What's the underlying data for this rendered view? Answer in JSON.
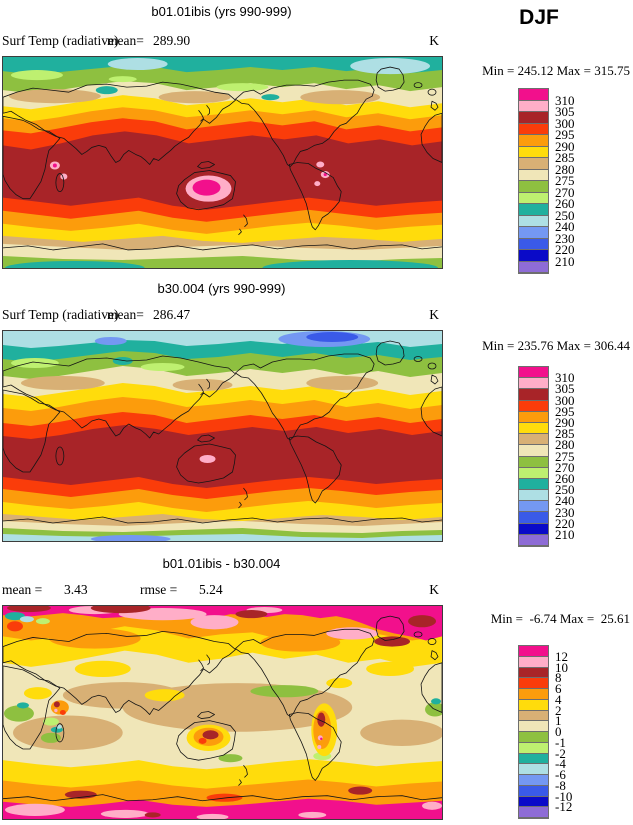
{
  "page": {
    "season": "DJF"
  },
  "palette": {
    "colors": [
      "#F2108C",
      "#FFAEC8",
      "#A82428",
      "#FA3C0A",
      "#FC9C0C",
      "#FFDC0C",
      "#D8B075",
      "#F0E6B8",
      "#8EC040",
      "#BEF070",
      "#20B09E",
      "#AEDFE4",
      "#7498F2",
      "#3A5AE8",
      "#0A0AC8",
      "#8E6CD6"
    ]
  },
  "panels": [
    {
      "title": "b01.01ibis (yrs 990-999)",
      "subtitle": "Surf Temp (radiative)",
      "stats": [
        {
          "label": "mean=",
          "value": "289.90"
        }
      ],
      "units": "K",
      "minmax": "Min = 245.12 Max = 315.75",
      "legend_labels": [
        "310",
        "305",
        "300",
        "295",
        "290",
        "285",
        "280",
        "275",
        "270",
        "260",
        "250",
        "240",
        "230",
        "220",
        "210"
      ]
    },
    {
      "title": "b30.004 (yrs 990-999)",
      "subtitle": "Surf Temp (radiative)",
      "stats": [
        {
          "label": "mean=",
          "value": "286.47"
        }
      ],
      "units": "K",
      "minmax": "Min = 235.76 Max = 306.44",
      "legend_labels": [
        "310",
        "305",
        "300",
        "295",
        "290",
        "285",
        "280",
        "275",
        "270",
        "260",
        "250",
        "240",
        "230",
        "220",
        "210"
      ]
    },
    {
      "title": "b01.01ibis - b30.004",
      "subtitle": "",
      "stats": [
        {
          "label": "mean =",
          "value": "3.43"
        },
        {
          "label": "rmse =",
          "value": "5.24"
        }
      ],
      "units": "K",
      "minmax": "Min =  -6.74 Max =  25.61",
      "legend_labels": [
        "12",
        "10",
        "8",
        "6",
        "4",
        "2",
        "1",
        "0",
        "-1",
        "-2",
        "-4",
        "-6",
        "-8",
        "-10",
        "-12"
      ]
    }
  ],
  "chart_data": [
    {
      "type": "heatmap",
      "subtype": "filled-contour global map",
      "title": "b01.01ibis (yrs 990-999)",
      "variable": "Surf Temp (radiative)",
      "season": "DJF",
      "units": "K",
      "mean": 289.9,
      "min": 245.12,
      "max": 315.75,
      "contour_levels": [
        210,
        220,
        230,
        240,
        250,
        260,
        270,
        275,
        280,
        285,
        290,
        295,
        300,
        305,
        310
      ],
      "legend_colors_top_to_bottom": "palette.colors",
      "layout": {
        "map": "global lat-lon, Pacific-centered (0-360E)",
        "legend_position": "right"
      }
    },
    {
      "type": "heatmap",
      "subtype": "filled-contour global map",
      "title": "b30.004 (yrs 990-999)",
      "variable": "Surf Temp (radiative)",
      "season": "DJF",
      "units": "K",
      "mean": 286.47,
      "min": 235.76,
      "max": 306.44,
      "contour_levels": [
        210,
        220,
        230,
        240,
        250,
        260,
        270,
        275,
        280,
        285,
        290,
        295,
        300,
        305,
        310
      ],
      "legend_colors_top_to_bottom": "palette.colors",
      "layout": {
        "map": "global lat-lon, Pacific-centered (0-360E)",
        "legend_position": "right"
      }
    },
    {
      "type": "heatmap",
      "subtype": "filled-contour global difference map",
      "title": "b01.01ibis - b30.004",
      "season": "DJF",
      "units": "K",
      "mean": 3.43,
      "rmse": 5.24,
      "min": -6.74,
      "max": 25.61,
      "contour_levels": [
        -12,
        -10,
        -8,
        -6,
        -4,
        -2,
        -1,
        0,
        1,
        2,
        4,
        6,
        8,
        10,
        12
      ],
      "legend_colors_top_to_bottom": "palette.colors",
      "layout": {
        "map": "global lat-lon, Pacific-centered (0-360E)",
        "legend_position": "right"
      }
    }
  ]
}
